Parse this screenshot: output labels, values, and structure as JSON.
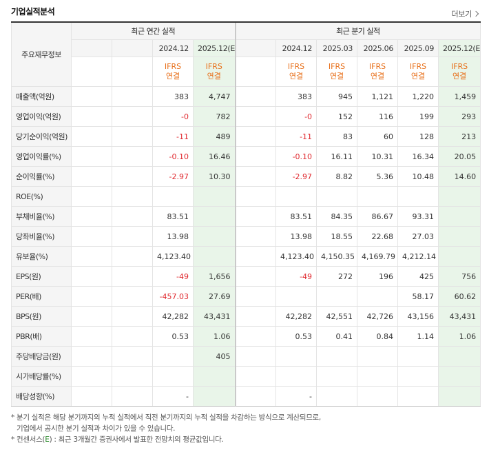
{
  "header": {
    "title": "기업실적분석",
    "more_label": "더보기"
  },
  "table": {
    "corner_label": "주요재무정보",
    "annual_group": "최근 연간 실적",
    "quarter_group": "최근 분기 실적",
    "annual_periods": [
      "",
      "",
      "2024.12",
      "2025.12(E)"
    ],
    "quarter_periods": [
      "",
      "2024.12",
      "2025.03",
      "2025.06",
      "2025.09",
      "2025.12(E)"
    ],
    "annual_ifrs": [
      "",
      "",
      "IFRS\n연결",
      "IFRS\n연결"
    ],
    "quarter_ifrs": [
      "",
      "IFRS\n연결",
      "IFRS\n연결",
      "IFRS\n연결",
      "IFRS\n연결",
      "IFRS\n연결"
    ],
    "rows": [
      {
        "label": "매출액(억원)",
        "annual": [
          "",
          "",
          "383",
          "4,747"
        ],
        "quarter": [
          "",
          "383",
          "945",
          "1,121",
          "1,220",
          "1,459"
        ]
      },
      {
        "label": "영업이익(억원)",
        "annual": [
          "",
          "",
          "-0",
          "782"
        ],
        "quarter": [
          "",
          "-0",
          "152",
          "116",
          "199",
          "293"
        ]
      },
      {
        "label": "당기순이익(억원)",
        "annual": [
          "",
          "",
          "-11",
          "489"
        ],
        "quarter": [
          "",
          "-11",
          "83",
          "60",
          "128",
          "213"
        ]
      },
      {
        "label": "영업이익률(%)",
        "annual": [
          "",
          "",
          "-0.10",
          "16.46"
        ],
        "quarter": [
          "",
          "-0.10",
          "16.11",
          "10.31",
          "16.34",
          "20.05"
        ]
      },
      {
        "label": "순이익률(%)",
        "annual": [
          "",
          "",
          "-2.97",
          "10.30"
        ],
        "quarter": [
          "",
          "-2.97",
          "8.82",
          "5.36",
          "10.48",
          "14.60"
        ]
      },
      {
        "label": "ROE(%)",
        "annual": [
          "",
          "",
          "",
          ""
        ],
        "quarter": [
          "",
          "",
          "",
          "",
          "",
          ""
        ]
      },
      {
        "label": "부채비율(%)",
        "annual": [
          "",
          "",
          "83.51",
          ""
        ],
        "quarter": [
          "",
          "83.51",
          "84.35",
          "86.67",
          "93.31",
          ""
        ]
      },
      {
        "label": "당좌비율(%)",
        "annual": [
          "",
          "",
          "13.98",
          ""
        ],
        "quarter": [
          "",
          "13.98",
          "18.55",
          "22.68",
          "27.03",
          ""
        ]
      },
      {
        "label": "유보율(%)",
        "annual": [
          "",
          "",
          "4,123.40",
          ""
        ],
        "quarter": [
          "",
          "4,123.40",
          "4,150.35",
          "4,169.79",
          "4,212.14",
          ""
        ]
      },
      {
        "label": "EPS(원)",
        "annual": [
          "",
          "",
          "-49",
          "1,656"
        ],
        "quarter": [
          "",
          "-49",
          "272",
          "196",
          "425",
          "756"
        ]
      },
      {
        "label": "PER(배)",
        "annual": [
          "",
          "",
          "-457.03",
          "27.69"
        ],
        "quarter": [
          "",
          "",
          "",
          "",
          "58.17",
          "60.62"
        ]
      },
      {
        "label": "BPS(원)",
        "annual": [
          "",
          "",
          "42,282",
          "43,431"
        ],
        "quarter": [
          "",
          "42,282",
          "42,551",
          "42,726",
          "43,156",
          "43,431"
        ]
      },
      {
        "label": "PBR(배)",
        "annual": [
          "",
          "",
          "0.53",
          "1.06"
        ],
        "quarter": [
          "",
          "0.53",
          "0.41",
          "0.84",
          "1.14",
          "1.06"
        ]
      },
      {
        "label": "주당배당금(원)",
        "annual": [
          "",
          "",
          "",
          "405"
        ],
        "quarter": [
          "",
          "",
          "",
          "",
          "",
          ""
        ]
      },
      {
        "label": "시가배당률(%)",
        "annual": [
          "",
          "",
          "",
          ""
        ],
        "quarter": [
          "",
          "",
          "",
          "",
          "",
          ""
        ]
      },
      {
        "label": "배당성향(%)",
        "annual": [
          "",
          "",
          "-",
          ""
        ],
        "quarter": [
          "",
          "-",
          "",
          "",
          "",
          ""
        ]
      }
    ]
  },
  "notes": {
    "line1": "* 분기 실적은 해당 분기까지의 누적 실적에서 직전 분기까지의 누적 실적을 차감하는 방식으로 계산되므로,",
    "line2": "기업에서 공시한 분기 실적과 차이가 있을 수 있습니다.",
    "line3_prefix": "* 컨센서스(",
    "line3_e": "E",
    "line3_suffix": ") : 최근 3개월간 증권사에서 발표한 전망치의 평균값입니다."
  },
  "colors": {
    "negative": "#e0282e",
    "ifrs": "#e8711c",
    "estimate_bg": "#e9f5e9",
    "header_bg": "#f5f5f5"
  }
}
